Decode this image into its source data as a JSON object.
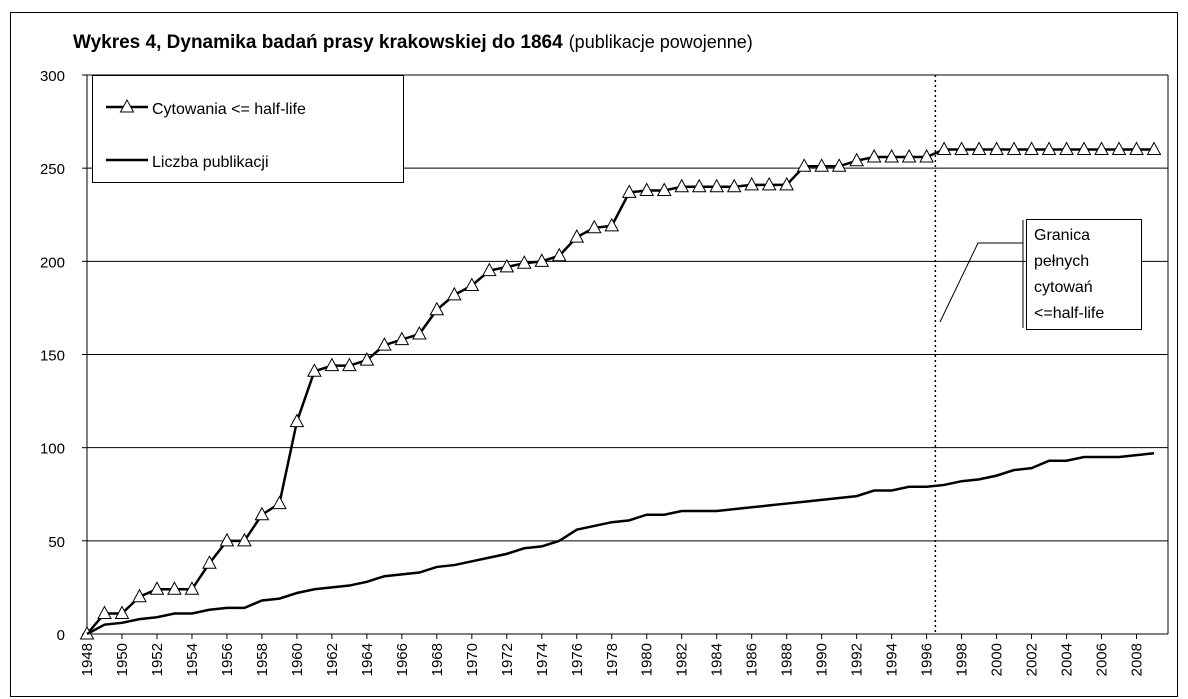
{
  "chart_data": {
    "type": "line",
    "title": "Wykres 4, Dynamika badań prasy krakowskiej do 1864",
    "subtitle": "(publikacje powojenne)",
    "x": [
      1948,
      1949,
      1950,
      1951,
      1952,
      1953,
      1954,
      1955,
      1956,
      1957,
      1958,
      1959,
      1960,
      1961,
      1962,
      1963,
      1964,
      1965,
      1966,
      1967,
      1968,
      1969,
      1970,
      1971,
      1972,
      1973,
      1974,
      1975,
      1976,
      1977,
      1978,
      1979,
      1980,
      1981,
      1982,
      1983,
      1984,
      1985,
      1986,
      1987,
      1988,
      1989,
      1990,
      1991,
      1992,
      1993,
      1994,
      1995,
      1996,
      1997,
      1998,
      1999,
      2000,
      2001,
      2002,
      2003,
      2004,
      2005,
      2006,
      2007,
      2008,
      2009
    ],
    "series": [
      {
        "name": "Cytowania <= half-life",
        "color": "#000000",
        "marker": "triangle",
        "values": [
          0,
          11,
          11,
          20,
          24,
          24,
          24,
          38,
          50,
          50,
          64,
          70,
          114,
          141,
          144,
          144,
          147,
          155,
          158,
          161,
          174,
          182,
          187,
          195,
          197,
          199,
          200,
          203,
          213,
          218,
          219,
          237,
          238,
          238,
          240,
          240,
          240,
          240,
          241,
          241,
          241,
          251,
          251,
          251,
          254,
          256,
          256,
          256,
          256,
          260,
          260,
          260,
          260,
          260,
          260,
          260,
          260,
          260,
          260,
          260,
          260,
          260
        ]
      },
      {
        "name": "Liczba publikacji",
        "color": "#000000",
        "marker": "none",
        "values": [
          0,
          5,
          6,
          8,
          9,
          11,
          11,
          13,
          14,
          14,
          18,
          19,
          22,
          24,
          25,
          26,
          28,
          31,
          32,
          33,
          36,
          37,
          39,
          41,
          43,
          46,
          47,
          50,
          56,
          58,
          60,
          61,
          64,
          64,
          66,
          66,
          66,
          67,
          68,
          69,
          70,
          71,
          72,
          73,
          74,
          77,
          77,
          79,
          79,
          80,
          82,
          83,
          85,
          88,
          89,
          93,
          93,
          95,
          95,
          95,
          96,
          97
        ]
      }
    ],
    "xlim": [
      1948,
      2009.8
    ],
    "xticks": [
      1948,
      1950,
      1952,
      1954,
      1956,
      1958,
      1960,
      1962,
      1964,
      1966,
      1968,
      1970,
      1972,
      1974,
      1976,
      1978,
      1980,
      1982,
      1984,
      1986,
      1988,
      1990,
      1992,
      1994,
      1996,
      1998,
      2000,
      2002,
      2004,
      2006,
      2008
    ],
    "ylim": [
      0,
      300
    ],
    "yticks": [
      0,
      50,
      100,
      150,
      200,
      250,
      300
    ],
    "grid": true,
    "legend": "top-left",
    "vline": 1996.5,
    "annotation": [
      "Granica",
      "pełnych",
      "cytowań",
      "<=half-life"
    ]
  }
}
